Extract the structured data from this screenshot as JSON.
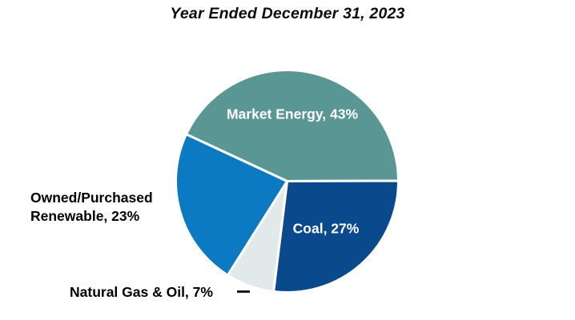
{
  "title": "Year Ended December 31, 2023",
  "chart_data": {
    "type": "pie",
    "title": "Year Ended December 31, 2023",
    "direction": "clockwise",
    "start_angle_deg": -65,
    "legend_position": "none",
    "background_color": "#ffffff",
    "separator_color": "#ffffff",
    "slices": [
      {
        "label": "Market Energy",
        "value_pct": 43,
        "color": "#5A9694",
        "label_text": "Market Energy, 43%",
        "label_color": "#ffffff",
        "label_position": "inside"
      },
      {
        "label": "Coal",
        "value_pct": 27,
        "color": "#0B498D",
        "label_text": "Coal, 27%",
        "label_color": "#ffffff",
        "label_position": "inside"
      },
      {
        "label": "Natural Gas & Oil",
        "value_pct": 7,
        "color": "#E1E9EB",
        "label_text": "Natural Gas & Oil, 7%",
        "label_color": "#000000",
        "label_position": "outside-left-with-leader"
      },
      {
        "label": "Owned/Purchased Renewable",
        "value_pct": 23,
        "color": "#0B7AC3",
        "label_text": "Owned/Purchased Renewable, 23%",
        "label_color": "#000000",
        "label_position": "outside-left"
      }
    ]
  }
}
